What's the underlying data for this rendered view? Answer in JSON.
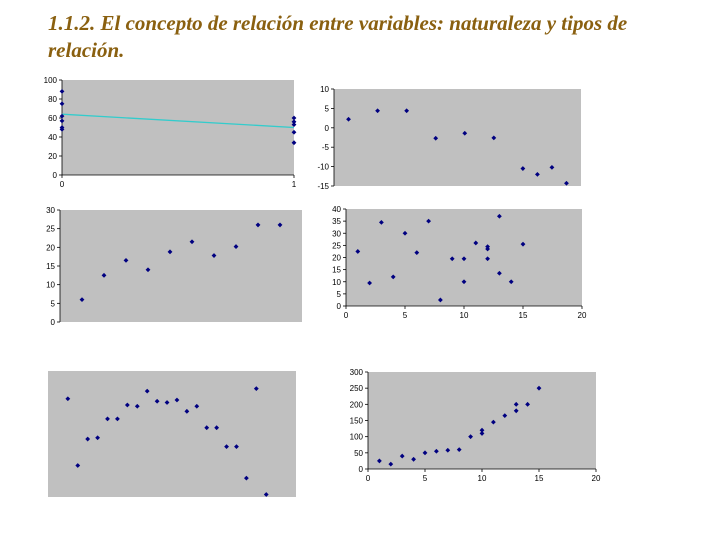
{
  "title": "1.1.2. El concepto de relación entre variables: naturaleza y tipos de relación.",
  "colors": {
    "plot_bg": "#c0c0c0",
    "marker": "#000080",
    "trend": "#33cccc",
    "title": "#8a6010"
  },
  "chart_data": [
    {
      "type": "scatter",
      "xlim": [
        0,
        1
      ],
      "ylim": [
        0,
        100
      ],
      "xticks": [
        0,
        1
      ],
      "yticks": [
        0,
        20,
        40,
        60,
        80,
        100
      ],
      "x": [
        0,
        0,
        0,
        0,
        0,
        0,
        1,
        1,
        1,
        1,
        1
      ],
      "y": [
        88,
        75,
        62,
        57,
        50,
        48,
        60,
        56,
        53,
        45,
        34
      ],
      "trendline": [
        [
          0,
          64
        ],
        [
          1,
          50
        ]
      ]
    },
    {
      "type": "scatter",
      "xlim": [
        0,
        17
      ],
      "ylim": [
        -15,
        10
      ],
      "xticks": [],
      "yticks": [
        10,
        5,
        0,
        -5,
        -10,
        -15
      ],
      "x": [
        1,
        3,
        5,
        7,
        9,
        11,
        13,
        14,
        15,
        16
      ],
      "y": [
        2.2,
        4.4,
        4.4,
        -2.7,
        -1.4,
        -2.6,
        -10.5,
        -12,
        -10.2,
        -14.3
      ]
    },
    {
      "type": "scatter",
      "xlim": [
        0,
        11
      ],
      "ylim": [
        0,
        30
      ],
      "xticks": [],
      "yticks": [
        0,
        5,
        10,
        15,
        20,
        25,
        30
      ],
      "x": [
        1,
        2,
        3,
        4,
        5,
        6,
        7,
        8,
        9,
        10
      ],
      "y": [
        6,
        12.5,
        16.5,
        14,
        18.8,
        21.5,
        17.8,
        20.2,
        26,
        26
      ]
    },
    {
      "type": "scatter",
      "xlim": [
        0,
        20
      ],
      "ylim": [
        0,
        40
      ],
      "xticks": [
        0,
        5,
        10,
        15,
        20
      ],
      "yticks": [
        0,
        5,
        10,
        15,
        20,
        25,
        30,
        35,
        40
      ],
      "x": [
        1,
        2,
        3,
        4,
        5,
        6,
        7,
        8,
        9,
        10,
        10,
        11,
        12,
        12,
        12,
        13,
        13,
        14,
        15
      ],
      "y": [
        22.5,
        9.5,
        34.5,
        12,
        30,
        22,
        35,
        2.5,
        19.5,
        10,
        19.5,
        26,
        24.5,
        23.5,
        19.5,
        13.5,
        37,
        10,
        25.5
      ]
    },
    {
      "type": "scatter",
      "xlim": [
        0,
        25
      ],
      "ylim": [
        0,
        100
      ],
      "xticks": [],
      "yticks": [],
      "x": [
        2,
        3,
        4,
        5,
        6,
        7,
        8,
        9,
        10,
        11,
        12,
        13,
        14,
        15,
        16,
        17,
        18,
        19,
        20,
        21,
        22
      ],
      "y": [
        78,
        25,
        46,
        47,
        62,
        62,
        73,
        72,
        84,
        76,
        75,
        77,
        68,
        72,
        55,
        55,
        40,
        40,
        15,
        86,
        2
      ]
    },
    {
      "type": "scatter",
      "xlim": [
        0,
        20
      ],
      "ylim": [
        0,
        300
      ],
      "xticks": [
        0,
        5,
        10,
        15,
        20
      ],
      "yticks": [
        0,
        50,
        100,
        150,
        200,
        250,
        300
      ],
      "x": [
        1,
        2,
        3,
        4,
        5,
        6,
        7,
        8,
        9,
        10,
        10,
        11,
        12,
        13,
        13,
        14,
        15
      ],
      "y": [
        25,
        15,
        40,
        30,
        50,
        55,
        58,
        60,
        100,
        110,
        120,
        145,
        165,
        180,
        200,
        200,
        250
      ]
    }
  ]
}
